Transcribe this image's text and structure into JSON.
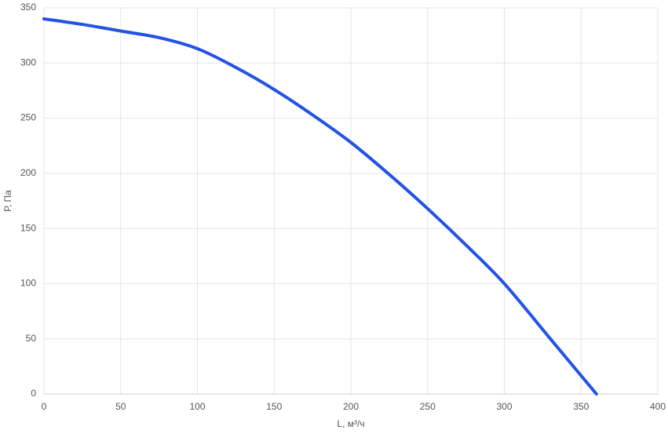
{
  "chart_data": {
    "type": "line",
    "x_label": "L, м³/ч",
    "y_label": "Р, Па",
    "x": [
      0,
      25,
      50,
      75,
      100,
      125,
      150,
      175,
      200,
      225,
      250,
      275,
      300,
      330,
      360
    ],
    "series": [
      {
        "name": "P",
        "color": "#2352e6",
        "values": [
          340,
          335,
          329,
          323,
          313,
          296,
          276,
          253,
          228,
          199,
          168,
          135,
          100,
          50,
          0
        ]
      }
    ],
    "xlim": [
      0,
      400
    ],
    "xticks": [
      0,
      50,
      100,
      150,
      200,
      250,
      300,
      350,
      400
    ],
    "ylim": [
      0,
      350
    ],
    "yticks": [
      0,
      50,
      100,
      150,
      200,
      250,
      300,
      350
    ],
    "grid": true
  }
}
